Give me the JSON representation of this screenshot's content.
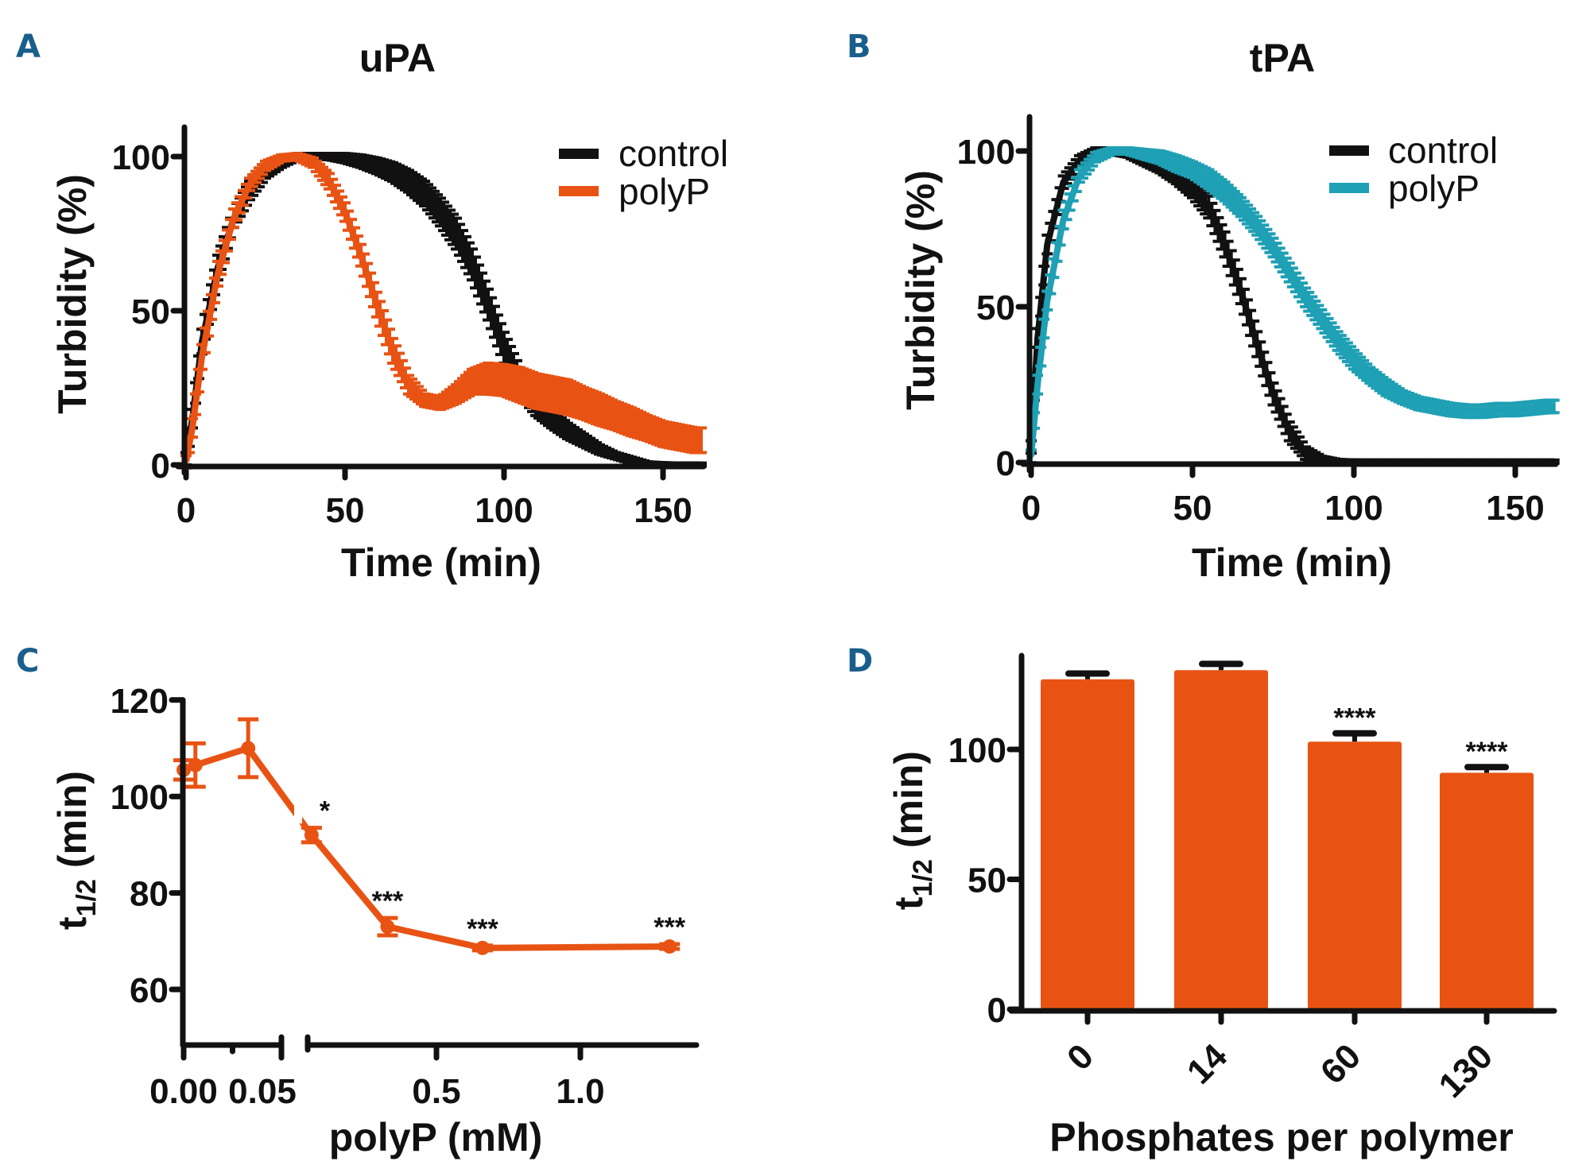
{
  "figure": {
    "panel_letter_color": "#1a5e8c"
  },
  "chart_data": [
    {
      "id": "A",
      "panel_letter": "A",
      "type": "line",
      "title": "uPA",
      "xlabel": "Time (min)",
      "ylabel": "Turbidity (%)",
      "xlim": [
        0,
        162
      ],
      "ylim": [
        0,
        108
      ],
      "xticks": [
        0,
        50,
        100,
        150
      ],
      "yticks": [
        0,
        50,
        100
      ],
      "xtick_labels": [
        "0",
        "50",
        "100",
        "150"
      ],
      "ytick_labels": [
        "0",
        "50",
        "100"
      ],
      "grid": false,
      "legend": {
        "position": "top-right",
        "entries": [
          {
            "label": "control",
            "color": "#111111"
          },
          {
            "label": "polyP",
            "color": "#e85314"
          }
        ]
      },
      "x": [
        0,
        2,
        5,
        10,
        15,
        20,
        25,
        30,
        35,
        40,
        45,
        50,
        55,
        60,
        65,
        70,
        75,
        80,
        85,
        90,
        95,
        100,
        105,
        110,
        115,
        120,
        125,
        130,
        135,
        140,
        145,
        150,
        155,
        160
      ],
      "series": [
        {
          "name": "control",
          "color": "#111111",
          "values": [
            2,
            15,
            40,
            64,
            80,
            89,
            95,
            98,
            100,
            100,
            100,
            99.5,
            98.5,
            97,
            95,
            92,
            88,
            82,
            75,
            65,
            52,
            38,
            27,
            20,
            15,
            11,
            8,
            5,
            3,
            1.5,
            0.5,
            0.2,
            0.1,
            0.1
          ],
          "error": [
            2,
            3,
            4,
            4,
            3,
            3,
            2,
            1.5,
            1,
            1,
            1,
            1.5,
            2,
            2.5,
            3,
            3.5,
            4,
            4.5,
            5,
            5,
            5,
            5,
            4.5,
            4,
            3,
            2.5,
            2,
            1.5,
            1,
            1,
            0.5,
            0.5,
            0.5,
            0.5
          ]
        },
        {
          "name": "polyP",
          "color": "#e85314",
          "values": [
            1,
            12,
            35,
            62,
            80,
            91,
            97,
            99.5,
            100,
            98,
            92,
            82,
            68,
            52,
            37,
            26,
            21,
            20,
            23,
            27,
            28,
            27.5,
            26,
            24,
            23,
            22,
            20,
            18,
            16,
            14,
            12,
            10,
            9,
            8
          ],
          "error": [
            2,
            3,
            4,
            4,
            3,
            2,
            1.5,
            1,
            1,
            1.5,
            2.5,
            3,
            3.5,
            4,
            4,
            3,
            2,
            2,
            3,
            4,
            5,
            5,
            5.5,
            5.5,
            5.5,
            5.5,
            5,
            5,
            4.5,
            4.5,
            4,
            4,
            4,
            4
          ]
        }
      ]
    },
    {
      "id": "B",
      "panel_letter": "B",
      "type": "line",
      "title": "tPA",
      "xlabel": "Time (min)",
      "ylabel": "Turbidity (%)",
      "xlim": [
        0,
        162
      ],
      "ylim": [
        0,
        110
      ],
      "xticks": [
        0,
        50,
        100,
        150
      ],
      "yticks": [
        0,
        50,
        100
      ],
      "xtick_labels": [
        "0",
        "50",
        "100",
        "150"
      ],
      "ytick_labels": [
        "0",
        "50",
        "100"
      ],
      "grid": false,
      "legend": {
        "position": "top-right",
        "entries": [
          {
            "label": "control",
            "color": "#111111"
          },
          {
            "label": "polyP",
            "color": "#1fa0b4"
          }
        ]
      },
      "x": [
        0,
        2,
        5,
        10,
        15,
        20,
        25,
        30,
        35,
        40,
        45,
        50,
        55,
        60,
        65,
        70,
        75,
        80,
        85,
        90,
        95,
        100,
        105,
        110,
        115,
        120,
        125,
        130,
        135,
        140,
        145,
        150,
        155,
        160
      ],
      "series": [
        {
          "name": "control",
          "color": "#111111",
          "values": [
            5,
            40,
            70,
            90,
            97,
            100,
            100,
            99,
            97,
            95,
            92,
            88,
            82,
            70,
            55,
            38,
            22,
            10,
            3,
            1,
            0.5,
            0.3,
            0.3,
            0.3,
            0.3,
            0.3,
            0.3,
            0.3,
            0.3,
            0.3,
            0.3,
            0.3,
            0.3,
            0.3
          ],
          "error": [
            2,
            3,
            3,
            2,
            1.5,
            1,
            1,
            1,
            1.5,
            2,
            2.5,
            3,
            3.5,
            4,
            4,
            4,
            3.5,
            3,
            2,
            1,
            0.5,
            0.5,
            0.5,
            0.5,
            0.5,
            0.5,
            0.5,
            0.5,
            0.5,
            0.5,
            0.5,
            0.5,
            0.5,
            0.5
          ]
        },
        {
          "name": "polyP",
          "color": "#1fa0b4",
          "values": [
            2,
            25,
            52,
            78,
            92,
            98,
            100,
            100,
            99,
            98,
            96,
            94,
            91,
            87,
            82,
            76,
            69,
            61,
            53,
            46,
            39,
            33,
            28,
            24,
            21,
            19,
            18,
            17,
            16.5,
            16.5,
            17,
            17,
            17.5,
            18
          ],
          "error": [
            2,
            3,
            3,
            3,
            2,
            1.5,
            1,
            1,
            1.5,
            2,
            2.5,
            2.5,
            3,
            3,
            3,
            3,
            3,
            3,
            3,
            3,
            3,
            3,
            2.5,
            2.5,
            2,
            2,
            2,
            2,
            2,
            2,
            2,
            2,
            2,
            2
          ]
        }
      ]
    },
    {
      "id": "C",
      "panel_letter": "C",
      "type": "line",
      "title": "",
      "xlabel": "polyP (mM)",
      "ylabel": "t1/2 (min)",
      "ylabel_main": "t",
      "ylabel_sub": "1/2",
      "ylabel_rest": "(min)",
      "ylim": [
        49,
        120
      ],
      "yticks": [
        60,
        80,
        100,
        120
      ],
      "ytick_labels": [
        "60",
        "80",
        "100",
        "120"
      ],
      "x_axis_break": {
        "segment1": [
          0,
          0.05
        ],
        "segment2": [
          0.05,
          1.4
        ]
      },
      "xticks": [
        0,
        0.025,
        0.05,
        0.5,
        1.0
      ],
      "xtick_labels": [
        "0.00",
        "",
        "0.05",
        "0.5",
        "1.0"
      ],
      "grid": false,
      "series": [
        {
          "name": "polyP",
          "color": "#e85314",
          "x": [
            0.0,
            0.006,
            0.033,
            0.066,
            0.33,
            0.66,
            1.31
          ],
          "values": [
            105.5,
            106.5,
            110,
            92,
            73,
            68.6,
            68.9
          ],
          "error": [
            2,
            4.5,
            6,
            1.5,
            1.8,
            0.5,
            0.5
          ],
          "annotations": [
            "",
            "",
            "",
            "*",
            "***",
            "***",
            "***"
          ]
        }
      ]
    },
    {
      "id": "D",
      "panel_letter": "D",
      "type": "bar",
      "title": "",
      "xlabel": "Phosphates per polymer",
      "ylabel": "t1/2 (min)",
      "ylabel_main": "t",
      "ylabel_sub": "1/2",
      "ylabel_rest": "(min)",
      "ylim": [
        0,
        136
      ],
      "yticks": [
        0,
        50,
        100
      ],
      "ytick_labels": [
        "0",
        "50",
        "100"
      ],
      "categories": [
        "0",
        "14",
        "60",
        "130"
      ],
      "values": [
        127,
        130.5,
        103,
        91
      ],
      "error": [
        2.2,
        2.4,
        3.2,
        2.2
      ],
      "annotations": [
        "",
        "",
        "****",
        "****"
      ],
      "color": "#e85314",
      "grid": false
    }
  ]
}
